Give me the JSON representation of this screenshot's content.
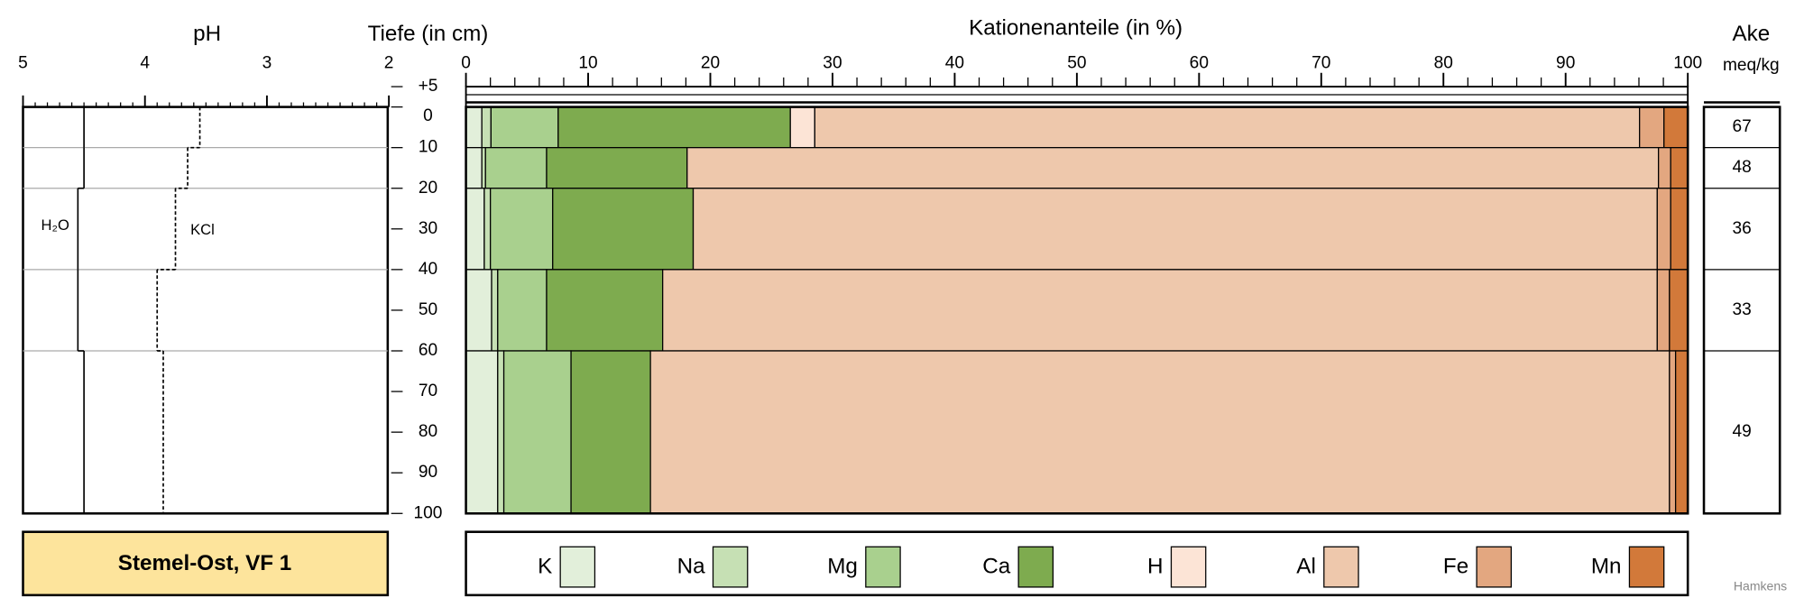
{
  "label": "Stemel-Ost, VF 1",
  "credit": "Hamkens",
  "chart_data": [
    {
      "type": "line",
      "title": "pH",
      "xlim": [
        5,
        2
      ],
      "xticks": [
        5,
        4,
        3,
        2
      ],
      "x_minor_step": 0.1,
      "grid": true,
      "series": [
        {
          "name": "H₂O",
          "color": "#000000",
          "dash": false,
          "values": [
            4.5,
            4.5,
            4.55,
            4.55,
            4.5
          ]
        },
        {
          "name": "KCl",
          "color": "#000000",
          "dash": true,
          "values": [
            3.55,
            3.65,
            3.75,
            3.9,
            3.85
          ]
        }
      ]
    },
    {
      "type": "bar",
      "orientation": "horizontal",
      "stacked": true,
      "title": "Kationenanteile (in %)",
      "ylabel": "Tiefe (in cm)",
      "xlim": [
        0,
        100
      ],
      "xticks": [
        0,
        10,
        20,
        30,
        40,
        50,
        60,
        70,
        80,
        90,
        100
      ],
      "x_minor_step": 2,
      "ylim": [
        -5,
        100
      ],
      "yticks": [
        {
          "value": -5,
          "label": "+5"
        },
        0,
        10,
        20,
        30,
        40,
        50,
        60,
        70,
        80,
        90,
        100
      ],
      "depths": [
        0,
        10,
        20,
        40,
        60,
        100
      ],
      "legend": "bottom",
      "series": [
        {
          "name": "K",
          "color": "#e2efda",
          "values": [
            1.3,
            1.3,
            1.5,
            2.1,
            2.6
          ]
        },
        {
          "name": "Na",
          "color": "#c6e0b4",
          "values": [
            0.75,
            0.3,
            0.5,
            0.5,
            0.5
          ]
        },
        {
          "name": "Mg",
          "color": "#a9d08e",
          "values": [
            5.5,
            5.0,
            5.1,
            4.0,
            5.5
          ]
        },
        {
          "name": "Ca",
          "color": "#7eab4f",
          "values": [
            19.0,
            11.5,
            11.5,
            9.5,
            6.5
          ]
        },
        {
          "name": "H",
          "color": "#fce4d6",
          "values": [
            2.0,
            0,
            0,
            0,
            0
          ]
        },
        {
          "name": "Al",
          "color": "#eec8ac",
          "values": [
            67.5,
            79.5,
            78.9,
            81.4,
            83.4
          ]
        },
        {
          "name": "Fe",
          "color": "#e3a780",
          "values": [
            2.0,
            1.0,
            1.1,
            1.0,
            0.5
          ]
        },
        {
          "name": "Mn",
          "color": "#d2793a",
          "values": [
            1.95,
            1.4,
            1.4,
            1.5,
            1.0
          ]
        }
      ]
    },
    {
      "type": "table",
      "title": "Ake",
      "subtitle": "meq/kg",
      "values": [
        67,
        48,
        36,
        33,
        49
      ]
    }
  ]
}
